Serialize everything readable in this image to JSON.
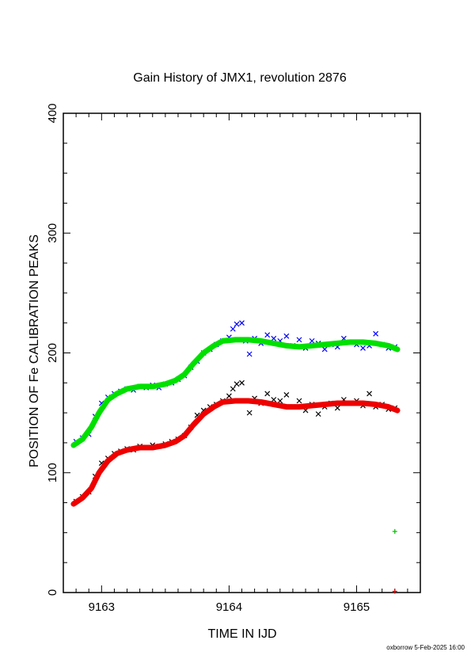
{
  "chart_data": {
    "type": "scatter",
    "title": "Gain History of JMX1, revolution 2876",
    "xlabel": "TIME IN IJD",
    "ylabel": "POSITION OF Fe CALIBRATION PEAKS",
    "xlim": [
      9162.7,
      9165.5
    ],
    "ylim": [
      0,
      400
    ],
    "xticks": [
      9163,
      9164,
      9165
    ],
    "xtick_labels": [
      "9163",
      "9164",
      "9165"
    ],
    "yticks": [
      0,
      100,
      200,
      300,
      400
    ],
    "ytick_labels": [
      "0",
      "100",
      "200",
      "300",
      "400"
    ],
    "grid": false,
    "footer": "oxborrow  5-Feb-2025 16:00",
    "series": [
      {
        "kind": "scatter",
        "marker": "x",
        "color": "#0000ff",
        "points": [
          [
            9162.8,
            126
          ],
          [
            9162.85,
            129
          ],
          [
            9162.9,
            132
          ],
          [
            9162.95,
            147
          ],
          [
            9163.0,
            158
          ],
          [
            9163.05,
            163
          ],
          [
            9163.1,
            166
          ],
          [
            9163.15,
            168
          ],
          [
            9163.2,
            170
          ],
          [
            9163.25,
            169
          ],
          [
            9163.3,
            172
          ],
          [
            9163.35,
            171
          ],
          [
            9163.4,
            173
          ],
          [
            9163.45,
            171
          ],
          [
            9163.5,
            174
          ],
          [
            9163.55,
            175
          ],
          [
            9163.6,
            178
          ],
          [
            9163.65,
            181
          ],
          [
            9163.7,
            188
          ],
          [
            9163.75,
            193
          ],
          [
            9163.8,
            200
          ],
          [
            9163.85,
            203
          ],
          [
            9163.9,
            207
          ],
          [
            9163.95,
            210
          ],
          [
            9164.0,
            213
          ],
          [
            9164.03,
            220
          ],
          [
            9164.06,
            224
          ],
          [
            9164.1,
            225
          ],
          [
            9164.13,
            210
          ],
          [
            9164.16,
            199
          ],
          [
            9164.2,
            212
          ],
          [
            9164.25,
            208
          ],
          [
            9164.3,
            215
          ],
          [
            9164.35,
            212
          ],
          [
            9164.4,
            210
          ],
          [
            9164.45,
            214
          ],
          [
            9164.5,
            206
          ],
          [
            9164.55,
            211
          ],
          [
            9164.6,
            204
          ],
          [
            9164.65,
            210
          ],
          [
            9164.7,
            208
          ],
          [
            9164.75,
            203
          ],
          [
            9164.8,
            207
          ],
          [
            9164.85,
            205
          ],
          [
            9164.9,
            212
          ],
          [
            9164.95,
            209
          ],
          [
            9165.0,
            207
          ],
          [
            9165.05,
            204
          ],
          [
            9165.1,
            206
          ],
          [
            9165.15,
            216
          ],
          [
            9165.2,
            207
          ],
          [
            9165.25,
            204
          ],
          [
            9165.3,
            205
          ]
        ]
      },
      {
        "kind": "scatter",
        "marker": "x",
        "color": "#000000",
        "points": [
          [
            9162.8,
            76
          ],
          [
            9162.85,
            80
          ],
          [
            9162.9,
            84
          ],
          [
            9162.95,
            97
          ],
          [
            9163.0,
            108
          ],
          [
            9163.05,
            112
          ],
          [
            9163.1,
            116
          ],
          [
            9163.15,
            118
          ],
          [
            9163.2,
            120
          ],
          [
            9163.25,
            119
          ],
          [
            9163.3,
            122
          ],
          [
            9163.35,
            121
          ],
          [
            9163.4,
            123
          ],
          [
            9163.45,
            122
          ],
          [
            9163.5,
            124
          ],
          [
            9163.55,
            126
          ],
          [
            9163.6,
            128
          ],
          [
            9163.65,
            131
          ],
          [
            9163.7,
            138
          ],
          [
            9163.75,
            148
          ],
          [
            9163.8,
            152
          ],
          [
            9163.85,
            155
          ],
          [
            9163.9,
            157
          ],
          [
            9163.95,
            160
          ],
          [
            9164.0,
            164
          ],
          [
            9164.03,
            170
          ],
          [
            9164.06,
            174
          ],
          [
            9164.1,
            175
          ],
          [
            9164.13,
            160
          ],
          [
            9164.16,
            150
          ],
          [
            9164.2,
            162
          ],
          [
            9164.25,
            158
          ],
          [
            9164.3,
            166
          ],
          [
            9164.35,
            161
          ],
          [
            9164.4,
            160
          ],
          [
            9164.45,
            165
          ],
          [
            9164.5,
            155
          ],
          [
            9164.55,
            160
          ],
          [
            9164.6,
            152
          ],
          [
            9164.65,
            157
          ],
          [
            9164.7,
            149
          ],
          [
            9164.75,
            155
          ],
          [
            9164.8,
            158
          ],
          [
            9164.85,
            154
          ],
          [
            9164.9,
            161
          ],
          [
            9164.95,
            158
          ],
          [
            9165.0,
            160
          ],
          [
            9165.05,
            156
          ],
          [
            9165.1,
            166
          ],
          [
            9165.15,
            155
          ],
          [
            9165.2,
            157
          ],
          [
            9165.25,
            153
          ],
          [
            9165.3,
            154
          ]
        ]
      },
      {
        "kind": "line",
        "color": "#00e000",
        "points": [
          [
            9162.78,
            123
          ],
          [
            9162.85,
            128
          ],
          [
            9162.92,
            138
          ],
          [
            9162.98,
            150
          ],
          [
            9163.05,
            161
          ],
          [
            9163.12,
            166
          ],
          [
            9163.2,
            170
          ],
          [
            9163.3,
            172
          ],
          [
            9163.4,
            172
          ],
          [
            9163.5,
            174
          ],
          [
            9163.58,
            177
          ],
          [
            9163.65,
            182
          ],
          [
            9163.72,
            191
          ],
          [
            9163.8,
            200
          ],
          [
            9163.88,
            206
          ],
          [
            9163.95,
            210
          ],
          [
            9164.05,
            211
          ],
          [
            9164.15,
            211
          ],
          [
            9164.25,
            210
          ],
          [
            9164.35,
            208
          ],
          [
            9164.45,
            206
          ],
          [
            9164.55,
            205
          ],
          [
            9164.65,
            206
          ],
          [
            9164.75,
            207
          ],
          [
            9164.85,
            208
          ],
          [
            9164.95,
            209
          ],
          [
            9165.05,
            209
          ],
          [
            9165.15,
            208
          ],
          [
            9165.25,
            206
          ],
          [
            9165.32,
            203
          ]
        ]
      },
      {
        "kind": "line",
        "color": "#ee0000",
        "points": [
          [
            9162.78,
            74
          ],
          [
            9162.85,
            79
          ],
          [
            9162.92,
            87
          ],
          [
            9162.98,
            100
          ],
          [
            9163.05,
            110
          ],
          [
            9163.12,
            116
          ],
          [
            9163.2,
            119
          ],
          [
            9163.3,
            121
          ],
          [
            9163.4,
            121
          ],
          [
            9163.5,
            123
          ],
          [
            9163.58,
            126
          ],
          [
            9163.65,
            131
          ],
          [
            9163.72,
            140
          ],
          [
            9163.8,
            149
          ],
          [
            9163.88,
            155
          ],
          [
            9163.95,
            159
          ],
          [
            9164.05,
            160
          ],
          [
            9164.15,
            160
          ],
          [
            9164.25,
            159
          ],
          [
            9164.35,
            157
          ],
          [
            9164.45,
            155
          ],
          [
            9164.55,
            155
          ],
          [
            9164.65,
            156
          ],
          [
            9164.75,
            157
          ],
          [
            9164.85,
            158
          ],
          [
            9164.95,
            158
          ],
          [
            9165.05,
            158
          ],
          [
            9165.15,
            157
          ],
          [
            9165.25,
            155
          ],
          [
            9165.32,
            152
          ]
        ]
      },
      {
        "kind": "scatter",
        "marker": "+",
        "color": "#00c000",
        "points": [
          [
            9165.3,
            51
          ]
        ]
      },
      {
        "kind": "scatter",
        "marker": "+",
        "color": "#ee0000",
        "points": [
          [
            9165.3,
            1
          ]
        ]
      }
    ]
  }
}
